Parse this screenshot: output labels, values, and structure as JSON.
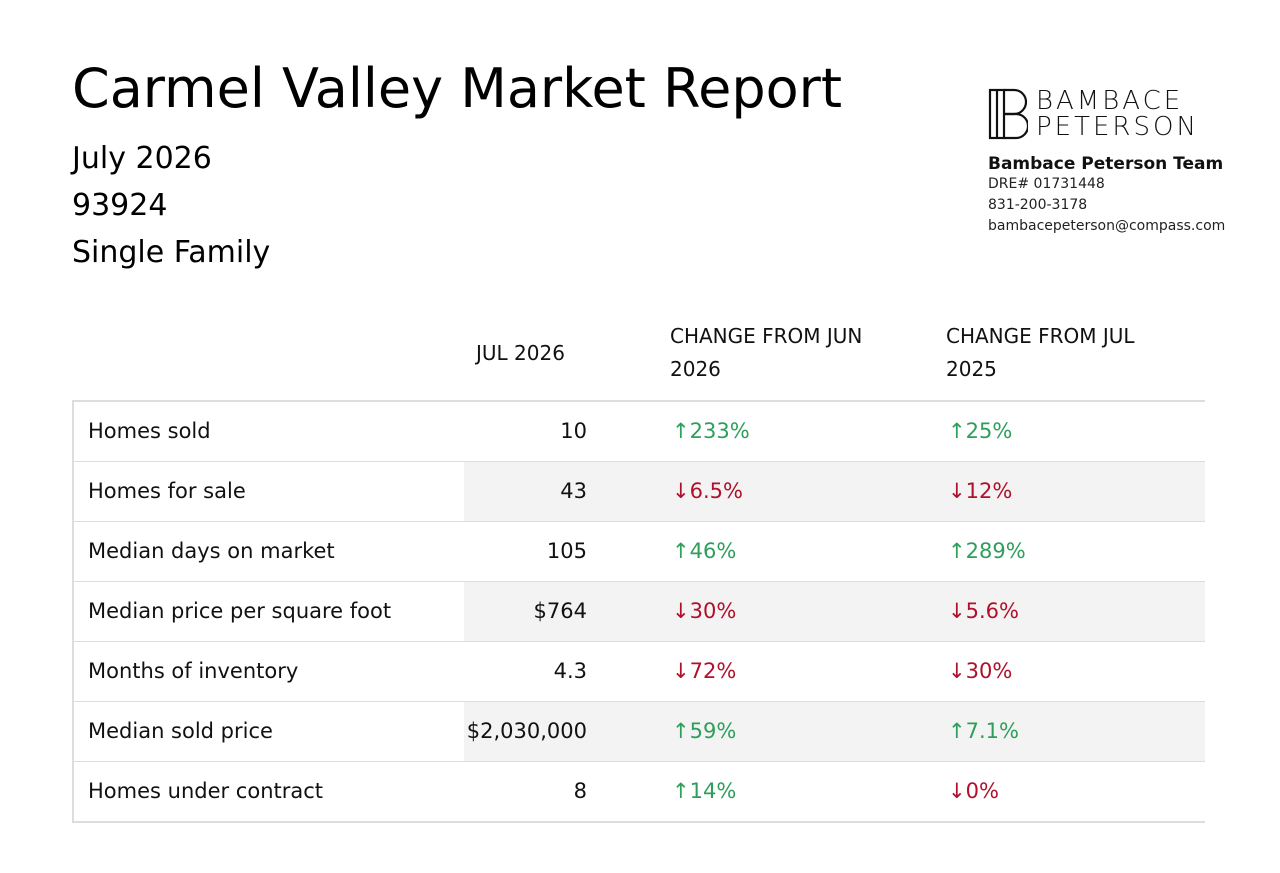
{
  "header": {
    "title": "Carmel Valley Market Report",
    "month": "July 2026",
    "zip": "93924",
    "property_type": "Single Family"
  },
  "brand": {
    "logo_line1": "BAMBACE",
    "logo_line2": "PETERSON",
    "team_name": "Bambace Peterson Team",
    "dre": "DRE# 01731448",
    "phone": "831-200-3178",
    "email": "bambacepeterson@compass.com"
  },
  "table": {
    "columns": {
      "current": "JUL 2026",
      "change_month": "CHANGE FROM JUN 2026",
      "change_year": "CHANGE FROM JUL 2025"
    },
    "rows": [
      {
        "label": "Homes sold",
        "value": "10",
        "change_month": "233%",
        "change_month_dir": "up",
        "change_year": "25%",
        "change_year_dir": "up"
      },
      {
        "label": "Homes for sale",
        "value": "43",
        "change_month": "6.5%",
        "change_month_dir": "down",
        "change_year": "12%",
        "change_year_dir": "down"
      },
      {
        "label": "Median days on market",
        "value": "105",
        "change_month": "46%",
        "change_month_dir": "up",
        "change_year": "289%",
        "change_year_dir": "up"
      },
      {
        "label": "Median price per square foot",
        "value": "$764",
        "change_month": "30%",
        "change_month_dir": "down",
        "change_year": "5.6%",
        "change_year_dir": "down"
      },
      {
        "label": "Months of inventory",
        "value": "4.3",
        "change_month": "72%",
        "change_month_dir": "down",
        "change_year": "30%",
        "change_year_dir": "down"
      },
      {
        "label": "Median sold price",
        "value": "$2,030,000",
        "change_month": "59%",
        "change_month_dir": "up",
        "change_year": "7.1%",
        "change_year_dir": "up"
      },
      {
        "label": "Homes under contract",
        "value": "8",
        "change_month": "14%",
        "change_month_dir": "up",
        "change_year": "0%",
        "change_year_dir": "down"
      }
    ]
  },
  "colors": {
    "up": "#2e9e5b",
    "down": "#b0102b",
    "shade": "#f3f3f3"
  }
}
